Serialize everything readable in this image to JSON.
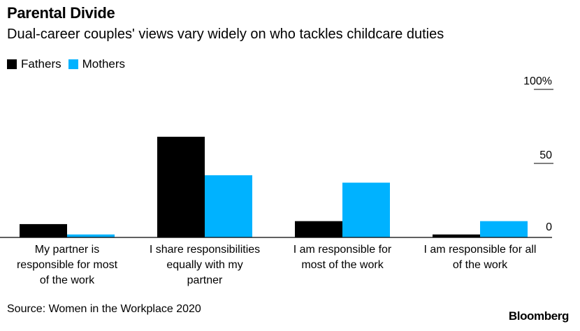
{
  "header": {
    "title": "Parental Divide",
    "subtitle": "Dual-career couples' views vary widely on who tackles childcare duties"
  },
  "legend": {
    "items": [
      {
        "label": "Fathers",
        "color": "#000000"
      },
      {
        "label": "Mothers",
        "color": "#00b2ff"
      }
    ]
  },
  "footer": {
    "source": "Source: Women in the Workplace 2020",
    "brand": "Bloomberg"
  },
  "chart_data": {
    "type": "bar",
    "title": "Parental Divide",
    "subtitle": "Dual-career couples' views vary widely on who tackles childcare duties",
    "categories": [
      [
        "My partner is",
        "responsible for most",
        "of the work"
      ],
      [
        "I share responsibilities",
        "equally with my",
        "partner"
      ],
      [
        "I am responsible for",
        "most of the work"
      ],
      [
        "I am responsible for all",
        "of the work"
      ]
    ],
    "series": [
      {
        "name": "Fathers",
        "color": "#000000",
        "values": [
          9,
          68,
          11,
          2
        ]
      },
      {
        "name": "Mothers",
        "color": "#00b2ff",
        "values": [
          2,
          42,
          37,
          11
        ]
      }
    ],
    "ylim": [
      0,
      100
    ],
    "yticks": [
      {
        "value": 100,
        "label": "100%"
      },
      {
        "value": 50,
        "label": "50"
      },
      {
        "value": 0,
        "label": "0"
      }
    ],
    "axis_position": "right",
    "legend_position": "top-left",
    "grid": false
  }
}
